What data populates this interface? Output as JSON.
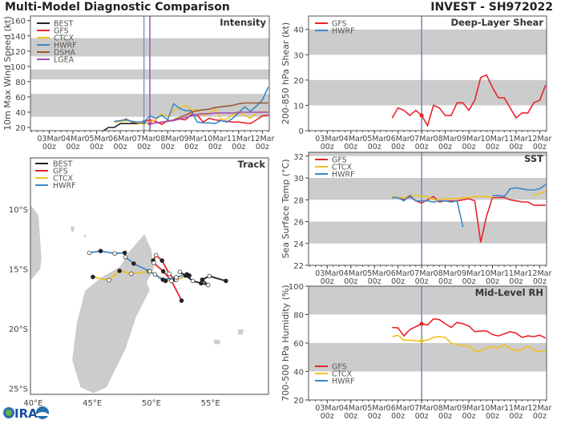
{
  "header": {
    "title": "Multi-Model Diagnostic Comparison",
    "storm": "INVEST - SH972022"
  },
  "footer": {
    "logo_text": "CIRA"
  },
  "colors": {
    "BEST": "#222222",
    "GFS": "#e8232a",
    "CTCX": "#f2c01e",
    "HWRF": "#3a88c8",
    "DSHA": "#9b5a2e",
    "LGEA": "#a550b8",
    "band": "#cccccc",
    "land": "#cccccc",
    "init_line": "#7088ad"
  },
  "chart_data": [
    {
      "id": "intensity",
      "type": "line",
      "title": "Intensity",
      "ylabel": "10m Max Wind Speed (kt)",
      "xlim": [
        "2022-03-02T05",
        "2022-03-12T07"
      ],
      "ylim": [
        15.8,
        166
      ],
      "yticks": [
        20,
        40,
        60,
        80,
        100,
        120,
        140,
        160
      ],
      "xticks": [
        [
          "03Mar",
          "00z"
        ],
        [
          "04Mar",
          "00z"
        ],
        [
          "05Mar",
          "00z"
        ],
        [
          "06Mar",
          "00z"
        ],
        [
          "07Mar",
          "00z"
        ],
        [
          "08Mar",
          "00z"
        ],
        [
          "09Mar",
          "00z"
        ],
        [
          "10Mar",
          "00z"
        ],
        [
          "11Mar",
          "00z"
        ],
        [
          "12Mar",
          "00z"
        ]
      ],
      "bands": [
        [
          34,
          64
        ],
        [
          83,
          96
        ],
        [
          113,
          137
        ]
      ],
      "vlines": [
        {
          "t": "2022-03-07T00",
          "model": "HWRF"
        },
        {
          "t": "2022-03-07T06",
          "model": "LGEA"
        }
      ],
      "legend": [
        "BEST",
        "GFS",
        "CTCX",
        "HWRF",
        "DSHA",
        "LGEA"
      ],
      "series": [
        {
          "name": "BEST",
          "start": "2022-03-04T12",
          "step_hours": 6,
          "values": [
            15,
            15,
            15,
            15,
            20,
            20,
            25,
            25,
            25,
            25,
            25
          ]
        },
        {
          "name": "GFS",
          "start": "2022-03-05T18",
          "step_hours": 6,
          "values": [
            27,
            28,
            31,
            27,
            26,
            27,
            30,
            28,
            24,
            29,
            29,
            31,
            30,
            37,
            36,
            27,
            32,
            30,
            29,
            28,
            27,
            27,
            26,
            25,
            30,
            35,
            36
          ]
        },
        {
          "name": "CTCX",
          "start": "2022-03-05T18",
          "step_hours": 6,
          "values": [
            27,
            28,
            29,
            28,
            26,
            24,
            27,
            30,
            38,
            34,
            42,
            46,
            49,
            43,
            43,
            35,
            39,
            44,
            31,
            31,
            37,
            39,
            36,
            32,
            40,
            40,
            41
          ]
        },
        {
          "name": "HWRF",
          "start": "2022-03-05T18",
          "step_hours": 6,
          "values": [
            28,
            29,
            30,
            28,
            27,
            27,
            35,
            32,
            36,
            30,
            51,
            45,
            42,
            42,
            27,
            26,
            26,
            25,
            29,
            27,
            32,
            39,
            47,
            41,
            48,
            56,
            73
          ]
        },
        {
          "name": "DSHA",
          "start": "2022-03-07T06",
          "step_hours": 6,
          "values": [
            25,
            26,
            27,
            28,
            30,
            33,
            36,
            40,
            42,
            43,
            44,
            46,
            47,
            48,
            49,
            51,
            52,
            52,
            52,
            52,
            52
          ]
        },
        {
          "name": "LGEA",
          "start": "2022-03-07T06",
          "step_hours": 6,
          "values": [
            25,
            26,
            27,
            28,
            29,
            31,
            33,
            35,
            37,
            38,
            38,
            39,
            39,
            39,
            39,
            40,
            40,
            40,
            40,
            40,
            40
          ]
        }
      ],
      "markers": [
        {
          "model": "HWRF",
          "t": "2022-03-07T00",
          "v": 27
        },
        {
          "model": "LGEA",
          "t": "2022-03-07T06",
          "v": 25
        }
      ]
    },
    {
      "id": "shear",
      "type": "line",
      "title": "Deep-Layer Shear",
      "ylabel": "200-850 hPa Shear (kt)",
      "xlim": [
        "2022-03-02T05",
        "2022-03-12T07"
      ],
      "ylim": [
        0,
        45.3
      ],
      "yticks": [
        0,
        10,
        20,
        30,
        40
      ],
      "xticks": [
        [
          "03Mar",
          "00z"
        ],
        [
          "04Mar",
          "00z"
        ],
        [
          "05Mar",
          "00z"
        ],
        [
          "06Mar",
          "00z"
        ],
        [
          "07Mar",
          "00z"
        ],
        [
          "08Mar",
          "00z"
        ],
        [
          "09Mar",
          "00z"
        ],
        [
          "10Mar",
          "00z"
        ],
        [
          "11Mar",
          "00z"
        ],
        [
          "12Mar",
          "00z"
        ]
      ],
      "bands": [
        [
          10,
          20
        ],
        [
          30,
          40
        ]
      ],
      "vlines": [
        {
          "t": "2022-03-07T00",
          "model": "init"
        }
      ],
      "legend": [
        "GFS",
        "HWRF"
      ],
      "series": [
        {
          "name": "GFS",
          "start": "2022-03-05T18",
          "step_hours": 6,
          "values": [
            5,
            9,
            8,
            6,
            8,
            6,
            2,
            10,
            9,
            6,
            6,
            11,
            11,
            8,
            12,
            21,
            22,
            17,
            13,
            13,
            9,
            5,
            7,
            7,
            11,
            12,
            18
          ]
        }
      ],
      "markers": [
        {
          "model": "GFS",
          "t": "2022-03-07T00",
          "v": 6
        }
      ]
    },
    {
      "id": "sst",
      "type": "line",
      "title": "SST",
      "ylabel": "Sea Surface Temp (°C)",
      "xlim": [
        "2022-03-02T05",
        "2022-03-12T07"
      ],
      "ylim": [
        22,
        32.35
      ],
      "yticks": [
        22,
        24,
        26,
        28,
        30,
        32
      ],
      "xticks": [
        [
          "03Mar",
          "00z"
        ],
        [
          "04Mar",
          "00z"
        ],
        [
          "05Mar",
          "00z"
        ],
        [
          "06Mar",
          "00z"
        ],
        [
          "07Mar",
          "00z"
        ],
        [
          "08Mar",
          "00z"
        ],
        [
          "09Mar",
          "00z"
        ],
        [
          "10Mar",
          "00z"
        ],
        [
          "11Mar",
          "00z"
        ],
        [
          "12Mar",
          "00z"
        ]
      ],
      "bands": [
        [
          24,
          26
        ],
        [
          28,
          30
        ],
        [
          32,
          34
        ]
      ],
      "vlines": [
        {
          "t": "2022-03-07T00",
          "model": "init"
        }
      ],
      "legend": [
        "GFS",
        "CTCX",
        "HWRF"
      ],
      "series": [
        {
          "name": "GFS",
          "start": "2022-03-05T18",
          "step_hours": 6,
          "values": [
            28.2,
            28.2,
            28.0,
            28.3,
            27.9,
            27.7,
            28.0,
            28.3,
            27.8,
            27.9,
            27.9,
            27.9,
            28.0,
            28.1,
            27.9,
            24.1,
            26.5,
            28.2,
            28.2,
            28.2,
            28.0,
            27.9,
            27.8,
            27.8,
            27.5,
            27.5,
            27.5
          ]
        },
        {
          "name": "CTCX",
          "start": "2022-03-05T18",
          "step_hours": 6,
          "values": [
            28.3,
            28.2,
            28.2,
            28.4,
            28.4,
            28.3,
            28.3,
            28.0,
            28.0,
            28.1,
            28.1,
            28.1,
            28.2,
            28.2,
            28.3,
            28.3,
            28.3,
            28.2,
            null,
            null,
            null,
            null,
            null,
            null,
            28.4,
            28.6,
            28.8
          ]
        },
        {
          "name": "HWRF",
          "start": "2022-03-05T18",
          "step_hours": 6,
          "values": [
            28.2,
            28.2,
            27.9,
            28.4,
            27.9,
            27.9,
            27.9,
            27.8,
            27.9,
            27.9,
            27.8,
            27.9,
            25.5,
            null,
            null,
            null,
            null,
            28.4,
            28.4,
            28.3,
            29.0,
            29.1,
            29.0,
            28.9,
            28.9,
            29.0,
            29.4
          ]
        }
      ],
      "markers": []
    },
    {
      "id": "rh",
      "type": "line",
      "title": "Mid-Level RH",
      "ylabel": "700-500 hPa Humidity (%)",
      "xlim": [
        "2022-03-02T05",
        "2022-03-12T07"
      ],
      "ylim": [
        20,
        100
      ],
      "yticks": [
        20,
        40,
        60,
        80,
        100
      ],
      "xticks": [
        [
          "03Mar",
          "00z"
        ],
        [
          "04Mar",
          "00z"
        ],
        [
          "05Mar",
          "00z"
        ],
        [
          "06Mar",
          "00z"
        ],
        [
          "07Mar",
          "00z"
        ],
        [
          "08Mar",
          "00z"
        ],
        [
          "09Mar",
          "00z"
        ],
        [
          "10Mar",
          "00z"
        ],
        [
          "11Mar",
          "00z"
        ],
        [
          "12Mar",
          "00z"
        ]
      ],
      "bands": [
        [
          40,
          60
        ],
        [
          80,
          100
        ]
      ],
      "vlines": [
        {
          "t": "2022-03-07T00",
          "model": "init"
        }
      ],
      "legend": [
        "GFS",
        "CTCX",
        "HWRF"
      ],
      "series": [
        {
          "name": "GFS",
          "start": "2022-03-05T18",
          "step_hours": 6,
          "values": [
            71,
            70.6,
            65,
            69.5,
            71.5,
            73.5,
            72.7,
            77,
            76.5,
            73.5,
            71,
            74.5,
            73.5,
            72,
            68,
            68.5,
            68.5,
            66,
            65,
            66.5,
            68,
            67,
            64,
            65,
            64.5,
            65.5,
            63.5
          ]
        },
        {
          "name": "CTCX",
          "start": "2022-03-05T18",
          "step_hours": 6,
          "values": [
            64.5,
            65.5,
            62,
            62,
            61.5,
            61.5,
            62,
            64,
            64.5,
            64,
            60,
            59,
            58,
            58,
            54.5,
            54.5,
            56.5,
            57.5,
            56.5,
            59,
            56,
            54.5,
            55.5,
            58,
            55,
            54,
            54.5
          ]
        }
      ],
      "markers": [
        {
          "model": "GFS",
          "t": "2022-03-07T00",
          "v": 73.5
        },
        {
          "model": "CTCX",
          "t": "2022-03-07T00",
          "v": 61.5
        }
      ]
    },
    {
      "id": "track",
      "type": "map",
      "title": "Track",
      "lon_range": [
        39.77,
        59.9
      ],
      "lat_range": [
        -25.5,
        -5.7
      ],
      "lon_ticks": [
        [
          40,
          "40°E"
        ],
        [
          45,
          "45°E"
        ],
        [
          50,
          "50°E"
        ],
        [
          55,
          "55°E"
        ]
      ],
      "lat_ticks": [
        [
          -10,
          "10°S"
        ],
        [
          -15,
          "15°S"
        ],
        [
          -20,
          "20°S"
        ],
        [
          -25,
          "25°S"
        ]
      ],
      "legend": [
        "BEST",
        "GFS",
        "CTCX",
        "HWRF"
      ],
      "land": [
        [
          [
            38.5,
            -5.0
          ],
          [
            39.3,
            -5.8
          ],
          [
            39.2,
            -8.9
          ],
          [
            40.45,
            -10.5
          ],
          [
            40.7,
            -14.1
          ],
          [
            40.6,
            -15.0
          ],
          [
            38.9,
            -17.0
          ],
          [
            38.5,
            -17.5
          ]
        ],
        [
          [
            49.4,
            -12.1
          ],
          [
            50.0,
            -13.4
          ],
          [
            50.2,
            -15.0
          ],
          [
            49.6,
            -16.1
          ],
          [
            49.85,
            -16.8
          ],
          [
            48.7,
            -19.0
          ],
          [
            47.8,
            -21.7
          ],
          [
            46.2,
            -24.9
          ],
          [
            45.1,
            -25.4
          ],
          [
            44.0,
            -24.9
          ],
          [
            43.3,
            -22.6
          ],
          [
            43.7,
            -19.5
          ],
          [
            44.4,
            -16.8
          ],
          [
            45.8,
            -15.7
          ],
          [
            47.35,
            -14.8
          ],
          [
            48.0,
            -13.7
          ],
          [
            48.6,
            -13.0
          ]
        ],
        [
          [
            55.3,
            -20.9
          ],
          [
            55.8,
            -20.95
          ],
          [
            55.8,
            -21.3
          ],
          [
            55.3,
            -21.3
          ]
        ],
        [
          [
            57.3,
            -20.1
          ],
          [
            57.8,
            -20.05
          ],
          [
            57.7,
            -20.5
          ],
          [
            57.35,
            -20.5
          ]
        ],
        [
          [
            43.2,
            -11.4
          ],
          [
            43.5,
            -11.5
          ],
          [
            43.4,
            -11.9
          ],
          [
            43.2,
            -11.8
          ]
        ],
        [
          [
            44.3,
            -12.1
          ],
          [
            44.5,
            -12.15
          ],
          [
            44.45,
            -12.35
          ],
          [
            44.3,
            -12.3
          ]
        ]
      ],
      "tracks": [
        {
          "name": "BEST",
          "points": [
            [
              56.3,
              -16.0
            ],
            [
              54.9,
              -15.6
            ],
            [
              54.3,
              -15.9
            ],
            [
              54.8,
              -16.35
            ],
            [
              54.2,
              -16.2
            ],
            [
              53.5,
              -16.0
            ],
            [
              52.9,
              -15.55
            ],
            [
              52.4,
              -15.25
            ]
          ]
        },
        {
          "name": "GFS",
          "points": [
            [
              52.0,
              -15.9
            ],
            [
              51.5,
              -15.4
            ],
            [
              50.9,
              -14.3
            ],
            [
              50.4,
              -13.85
            ],
            [
              50.15,
              -14.3
            ],
            [
              50.2,
              -14.5
            ],
            [
              51.0,
              -15.2
            ],
            [
              51.7,
              -16.0
            ],
            [
              52.55,
              -17.65
            ]
          ]
        },
        {
          "name": "CTCX",
          "points": [
            [
              53.2,
              -15.55
            ],
            [
              52.1,
              -15.9
            ],
            [
              51.2,
              -16.0
            ],
            [
              50.3,
              -15.45
            ],
            [
              49.8,
              -15.2
            ],
            [
              48.3,
              -15.4
            ],
            [
              47.3,
              -15.16
            ],
            [
              46.4,
              -15.94
            ],
            [
              45.05,
              -15.67
            ]
          ]
        },
        {
          "name": "HWRF",
          "points": [
            [
              53.0,
              -15.45
            ],
            [
              52.1,
              -15.7
            ],
            [
              50.97,
              -15.9
            ],
            [
              49.85,
              -15.2
            ],
            [
              48.5,
              -14.55
            ],
            [
              47.8,
              -14.0
            ],
            [
              47.75,
              -13.65
            ],
            [
              46.9,
              -13.7
            ],
            [
              45.7,
              -13.5
            ],
            [
              44.75,
              -13.65
            ]
          ]
        }
      ]
    }
  ]
}
